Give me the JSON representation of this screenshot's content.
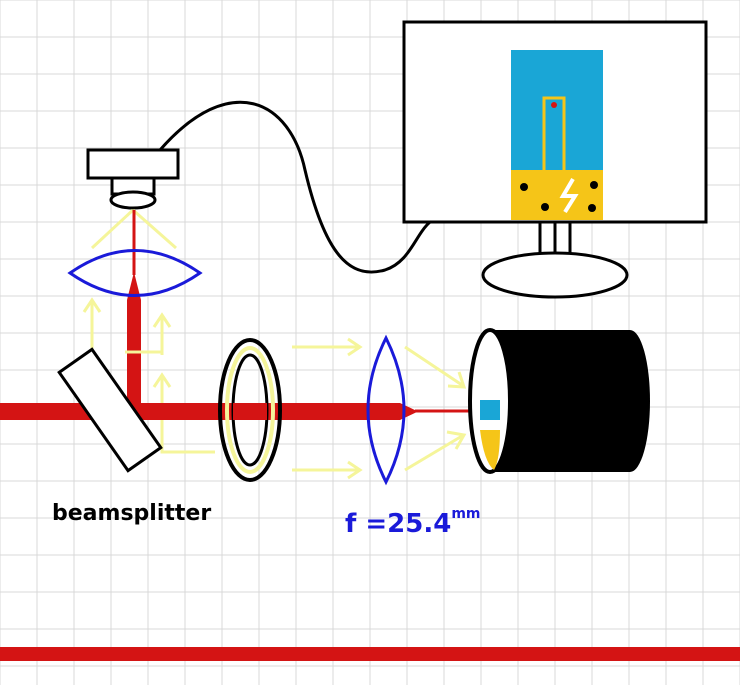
{
  "labels": {
    "beamsplitter": "beamsplitter",
    "focal_prefix": "f =25.4",
    "focal_unit": "mm"
  },
  "colors": {
    "grid": "#d9d9d9",
    "laser": "#d41414",
    "lens": "#1a1ad9",
    "light_rays": "#f5f59a",
    "sample_blue": "#1aa6d6",
    "sample_yellow": "#f5c518",
    "outline": "#000000"
  }
}
